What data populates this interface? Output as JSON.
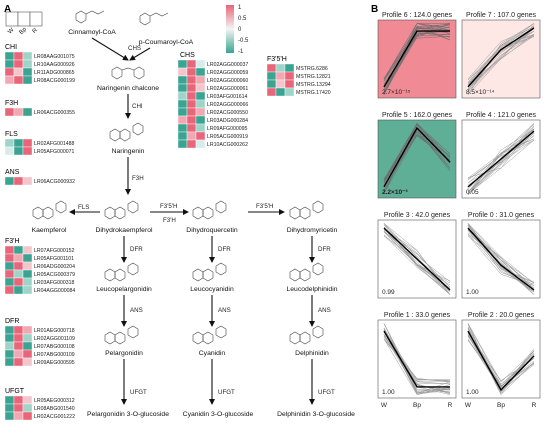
{
  "panel_labels": {
    "a": "A",
    "b": "B"
  },
  "sample_labels": [
    "W",
    "Bp",
    "R"
  ],
  "color_scale": {
    "ticks": [
      "1",
      "0.5",
      "0",
      "-0.5",
      "-1"
    ],
    "high_color": "#e8657a",
    "low_color": "#3aa391",
    "mid_color": "#f4f4f4"
  },
  "compounds": {
    "cinnamoyl": "Cinnamoyl-CoA",
    "coumaroyl": "p-Coumaroyl-CoA",
    "naringenin_chalcone": "Naringenin chalcone",
    "naringenin": "Naringenin",
    "kaempferol": "Kaempferol",
    "dihydrokaempferol": "Dihydrokaempferol",
    "dihydroquercetin": "Dihydroquercetin",
    "dihydromyricetin": "Dihydromyricetin",
    "leucopelargonidin": "Leucopelargonidin",
    "leucocyanidin": "Leucocyanidin",
    "leucodelphinidin": "Leucodelphinidin",
    "pelargonidin": "Pelargonidin",
    "cyanidin": "Cyanidin",
    "delphinidin": "Delphinidin",
    "pg3g": "Pelargonidin 3-O-glucoside",
    "cy3g": "Cyanidin 3-O-glucoside",
    "dp3g": "Delphinidin 3-O-glucoside"
  },
  "enzymes": {
    "chs": "CHS",
    "chi": "CHI",
    "f3h": "F3H",
    "fls": "FLS",
    "f3ph1": "F3'5'H",
    "f3ph2": "F3'H",
    "f3p5ph": "F3'5'H",
    "dfr": "DFR",
    "ans": "ANS",
    "ufgt": "UFGT"
  },
  "heatmaps": {
    "chi": {
      "title": "CHI",
      "genes": [
        "LR08AAG001075",
        "LR10AAG000926",
        "LR11ADG000865",
        "LR08ACG000199"
      ],
      "colors": [
        [
          "#3aa391",
          "#e8657a",
          "#9fd4c8"
        ],
        [
          "#3aa391",
          "#e8657a",
          "#9fd4c8"
        ],
        [
          "#e8657a",
          "#f3c6cc",
          "#3aa391"
        ],
        [
          "#f2a8b2",
          "#e8657a",
          "#3aa391"
        ]
      ]
    },
    "f3h": {
      "title": "F3H",
      "genes": [
        "LR06ACG000355"
      ],
      "colors": [
        [
          "#e8657a",
          "#f2a8b2",
          "#3aa391"
        ]
      ]
    },
    "fls": {
      "title": "FLS",
      "genes": [
        "LR02AFG001488",
        "LR05AFG000071"
      ],
      "colors": [
        [
          "#9fd4c8",
          "#3aa391",
          "#e8657a"
        ],
        [
          "#d7ecea",
          "#3aa391",
          "#e8657a"
        ]
      ]
    },
    "ans": {
      "title": "ANS",
      "genes": [
        "LR06ACG000932"
      ],
      "colors": [
        [
          "#3aa391",
          "#e8657a",
          "#f3c6cc"
        ]
      ]
    },
    "f3ph": {
      "title": "F3'H",
      "genes": [
        "LR07AFG000152",
        "LR05AFG001101",
        "LR06ADG000204",
        "LR05ACG000379",
        "LR03AFG000318",
        "LR04AGG000084"
      ],
      "colors": [
        [
          "#e8657a",
          "#3aa391",
          "#f3c6cc"
        ],
        [
          "#e8657a",
          "#f2a8b2",
          "#3aa391"
        ],
        [
          "#3aa391",
          "#e8657a",
          "#f3c6cc"
        ],
        [
          "#e8657a",
          "#9fd4c8",
          "#3aa391"
        ],
        [
          "#3aa391",
          "#e8657a",
          "#9fd4c8"
        ],
        [
          "#e8657a",
          "#3aa391",
          "#9fd4c8"
        ]
      ]
    },
    "dfr": {
      "title": "DFR",
      "genes": [
        "LR01AEG000718",
        "LR02AGG001109",
        "LR07ABG000108",
        "LR07ABG000109",
        "LR09AEG000595"
      ],
      "colors": [
        [
          "#3aa391",
          "#e8657a",
          "#f2a8b2"
        ],
        [
          "#3aa391",
          "#e8657a",
          "#9fd4c8"
        ],
        [
          "#9fd4c8",
          "#e8657a",
          "#3aa391"
        ],
        [
          "#3aa391",
          "#f2a8b2",
          "#e8657a"
        ],
        [
          "#3aa391",
          "#e8657a",
          "#f3c6cc"
        ]
      ]
    },
    "ufgt": {
      "title": "UFGT",
      "genes": [
        "LR05AEG000312",
        "LR08ABG001540",
        "LR02ACG001222"
      ],
      "colors": [
        [
          "#3aa391",
          "#e8657a",
          "#f3c6cc"
        ],
        [
          "#3aa391",
          "#e8657a",
          "#9fd4c8"
        ],
        [
          "#3aa391",
          "#f2a8b2",
          "#e8657a"
        ]
      ]
    },
    "chs": {
      "title": "CHS",
      "genes": [
        "LR02AGG000037",
        "LR02AGG000059",
        "LR02AGG000060",
        "LR02AGG000061",
        "LR03AFG001614",
        "LR02AGG000066",
        "LR02ACG000550",
        "LR03ADG000284",
        "LR09AFG000095",
        "LR05ACG000919",
        "LR10ACG000262"
      ],
      "colors": [
        [
          "#3aa391",
          "#e8657a",
          "#d7ecea"
        ],
        [
          "#f3c6cc",
          "#e8657a",
          "#3aa391"
        ],
        [
          "#3aa391",
          "#e8657a",
          "#f2a8b2"
        ],
        [
          "#3aa391",
          "#e8657a",
          "#f3c6cc"
        ],
        [
          "#9fd4c8",
          "#e8657a",
          "#3aa391"
        ],
        [
          "#3aa391",
          "#e8657a",
          "#9fd4c8"
        ],
        [
          "#3aa391",
          "#e8657a",
          "#f2a8b2"
        ],
        [
          "#f2a8b2",
          "#e8657a",
          "#3aa391"
        ],
        [
          "#3aa391",
          "#e8657a",
          "#9fd4c8"
        ],
        [
          "#3aa391",
          "#f2a8b2",
          "#e8657a"
        ],
        [
          "#3aa391",
          "#e8657a",
          "#d7ecea"
        ]
      ]
    },
    "f35h": {
      "title": "F3'5'H",
      "genes": [
        "MSTRG.6286",
        "MSTRG.12821",
        "MSTRG.13294",
        "MSTRG.17420"
      ],
      "colors": [
        [
          "#e8657a",
          "#9fd4c8",
          "#3aa391"
        ],
        [
          "#3aa391",
          "#f2a8b2",
          "#e8657a"
        ],
        [
          "#3aa391",
          "#f3c6cc",
          "#e8657a"
        ],
        [
          "#e8657a",
          "#3aa391",
          "#9fd4c8"
        ]
      ]
    }
  },
  "profiles": [
    {
      "title": "Profile 6 : 124.0 genes",
      "pvalue": "2.7×10⁻¹⁵",
      "bg": "#f08a94",
      "title_color": "#222222",
      "pv_bold": false,
      "mean": [
        -0.9,
        0.9,
        0.9
      ]
    },
    {
      "title": "Profile 7 : 107.0 genes",
      "pvalue": "8.5×10⁻¹⁴",
      "bg": "#fde8e6",
      "title_color": "#222222",
      "pv_bold": false,
      "mean": [
        -0.9,
        0.3,
        1.0
      ]
    },
    {
      "title": "Profile 5 : 162.0 genes",
      "pvalue": "2.2×10⁻³",
      "bg": "#5fae96",
      "title_color": "#e8465b",
      "pv_bold": true,
      "mean": [
        -0.9,
        1.0,
        -0.1
      ]
    },
    {
      "title": "Profile 4 : 121.0 genes",
      "pvalue": "0.05",
      "bg": "#ffffff",
      "title_color": "#222222",
      "pv_bold": false,
      "mean": [
        -0.9,
        0.0,
        0.9
      ]
    },
    {
      "title": "Profile 3 : 42.0 genes",
      "pvalue": "0.99",
      "bg": "#ffffff",
      "title_color": "#222222",
      "pv_bold": false,
      "mean": [
        1.0,
        0.0,
        -1.0
      ]
    },
    {
      "title": "Profile 0 : 31.0 genes",
      "pvalue": "1.00",
      "bg": "#ffffff",
      "title_color": "#222222",
      "pv_bold": false,
      "mean": [
        1.0,
        -0.2,
        -1.0
      ]
    },
    {
      "title": "Profile 1 : 33.0 genes",
      "pvalue": "1.00",
      "bg": "#ffffff",
      "title_color": "#222222",
      "pv_bold": false,
      "mean": [
        0.9,
        -0.9,
        -0.9
      ]
    },
    {
      "title": "Profile 2 : 20.0 genes",
      "pvalue": "1.00",
      "bg": "#ffffff",
      "title_color": "#222222",
      "pv_bold": false,
      "mean": [
        0.9,
        -1.0,
        0.1
      ]
    }
  ],
  "profile_x_labels": [
    "W",
    "Bp",
    "R"
  ]
}
